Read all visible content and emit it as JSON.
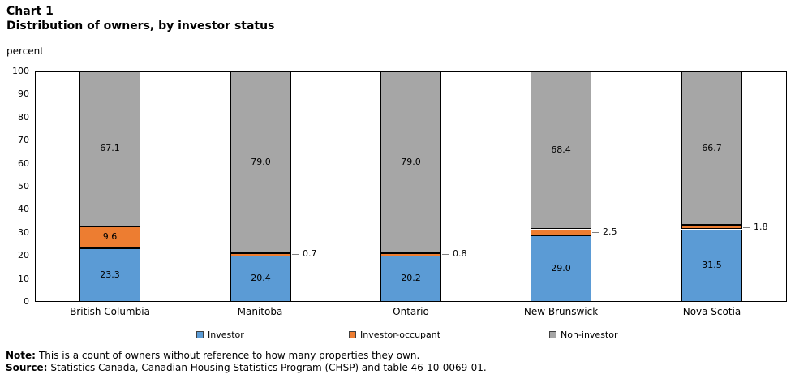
{
  "header": {
    "chart_number": "Chart 1",
    "title": "Distribution of owners, by investor status",
    "unit_label": "percent"
  },
  "chart_data": {
    "type": "bar",
    "stacked": true,
    "title": "Distribution of owners, by investor status",
    "ylabel": "percent",
    "ylim": [
      0,
      100
    ],
    "yticks": [
      0,
      10,
      20,
      30,
      40,
      50,
      60,
      70,
      80,
      90,
      100
    ],
    "grid": true,
    "legend_position": "bottom",
    "categories": [
      "British Columbia",
      "Manitoba",
      "Ontario",
      "New Brunswick",
      "Nova Scotia"
    ],
    "series": [
      {
        "name": "Investor",
        "color": "#5B9BD5",
        "values": [
          23.3,
          20.4,
          20.2,
          29.0,
          31.5
        ]
      },
      {
        "name": "Investor-occupant",
        "color": "#ED7D31",
        "values": [
          9.6,
          0.7,
          0.8,
          2.5,
          1.8
        ]
      },
      {
        "name": "Non-investor",
        "color": "#A6A6A6",
        "values": [
          67.1,
          79.0,
          79.0,
          68.4,
          66.7
        ]
      }
    ]
  },
  "legend": {
    "items": [
      {
        "label": "Investor",
        "color": "#5B9BD5"
      },
      {
        "label": "Investor-occupant",
        "color": "#ED7D31"
      },
      {
        "label": "Non-investor",
        "color": "#A6A6A6"
      }
    ]
  },
  "footer": {
    "note_label": "Note:",
    "note_text": "This is a count of owners without reference to how many properties they own.",
    "source_label": "Source:",
    "source_text": "Statistics Canada, Canadian Housing Statistics Program (CHSP) and table 46-10-0069-01."
  },
  "colors": {
    "bar_border": "#000000",
    "gridline": "#d9d9d9",
    "leader_line": "#7f7f7f",
    "text": "#000000"
  }
}
